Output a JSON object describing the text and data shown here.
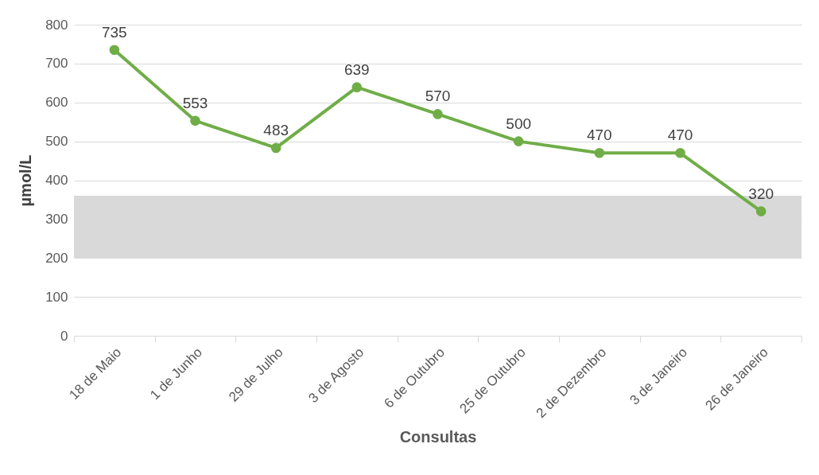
{
  "chart_data": {
    "type": "line",
    "xlabel": "Consultas",
    "ylabel": "µmol/L",
    "categories": [
      "18 de Maio",
      "1 de Junho",
      "29 de Julho",
      "3 de Agosto",
      "6 de Outubro",
      "25 de Outubro",
      "2 de Dezembro",
      "3 de Janeiro",
      "26 de Janeiro"
    ],
    "series": [
      {
        "color": "#70ad47",
        "values": [
          735,
          553,
          483,
          639,
          570,
          500,
          470,
          470,
          320
        ]
      }
    ],
    "ylim": [
      0,
      800
    ],
    "yticks": [
      0,
      100,
      200,
      300,
      400,
      500,
      600,
      700,
      800
    ],
    "grid": "y",
    "marker": "circle",
    "line_style": "solid",
    "data_labels": true,
    "bands": [
      {
        "axis": "y",
        "from": 200,
        "to": 360,
        "color": "#d9d9d9"
      }
    ]
  }
}
